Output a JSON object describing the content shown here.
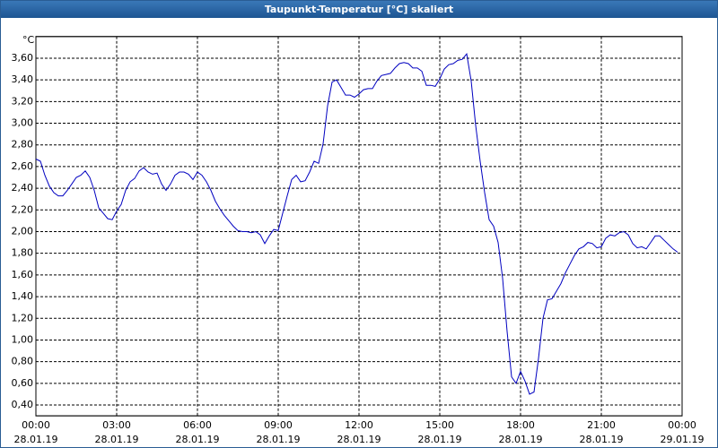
{
  "chart_data": {
    "type": "line",
    "title": "Taupunkt-Temperatur [°C] skaliert",
    "y_unit": "°C",
    "color": "#0000c0",
    "grid": true,
    "xlim": [
      0,
      1440
    ],
    "xticks": [
      {
        "value": 0,
        "label": "00:00"
      },
      {
        "value": 180,
        "label": "03:00"
      },
      {
        "value": 360,
        "label": "06:00"
      },
      {
        "value": 540,
        "label": "09:00"
      },
      {
        "value": 720,
        "label": "12:00"
      },
      {
        "value": 900,
        "label": "15:00"
      },
      {
        "value": 1080,
        "label": "18:00"
      },
      {
        "value": 1260,
        "label": "21:00"
      },
      {
        "value": 1440,
        "label": "00:00"
      }
    ],
    "xtick_dates": [
      "28.01.19",
      "28.01.19",
      "28.01.19",
      "28.01.19",
      "28.01.19",
      "28.01.19",
      "28.01.19",
      "28.01.19",
      "29.01.19"
    ],
    "ylim": [
      0.3,
      3.8
    ],
    "yticks": [
      {
        "value": 0.4,
        "label": "0,40"
      },
      {
        "value": 0.6,
        "label": "0,60"
      },
      {
        "value": 0.8,
        "label": "0,80"
      },
      {
        "value": 1.0,
        "label": "1,00"
      },
      {
        "value": 1.2,
        "label": "1,20"
      },
      {
        "value": 1.4,
        "label": "1,40"
      },
      {
        "value": 1.6,
        "label": "1,60"
      },
      {
        "value": 1.8,
        "label": "1,80"
      },
      {
        "value": 2.0,
        "label": "2,00"
      },
      {
        "value": 2.2,
        "label": "2,20"
      },
      {
        "value": 2.4,
        "label": "2,40"
      },
      {
        "value": 2.6,
        "label": "2,60"
      },
      {
        "value": 2.8,
        "label": "2,80"
      },
      {
        "value": 3.0,
        "label": "3,00"
      },
      {
        "value": 3.2,
        "label": "3,20"
      },
      {
        "value": 3.4,
        "label": "3,40"
      },
      {
        "value": 3.6,
        "label": "3,60"
      }
    ],
    "x": [
      0,
      10,
      20,
      30,
      40,
      50,
      60,
      70,
      80,
      90,
      100,
      110,
      120,
      130,
      140,
      150,
      160,
      170,
      180,
      190,
      200,
      210,
      220,
      230,
      240,
      250,
      260,
      270,
      280,
      290,
      300,
      310,
      320,
      330,
      340,
      350,
      360,
      370,
      380,
      390,
      400,
      410,
      420,
      430,
      440,
      450,
      460,
      470,
      480,
      490,
      500,
      510,
      520,
      530,
      540,
      550,
      560,
      570,
      580,
      590,
      600,
      610,
      620,
      630,
      640,
      650,
      660,
      670,
      680,
      690,
      700,
      710,
      720,
      730,
      740,
      750,
      760,
      770,
      780,
      790,
      800,
      810,
      820,
      830,
      840,
      850,
      860,
      870,
      880,
      890,
      900,
      910,
      920,
      930,
      940,
      950,
      960,
      970,
      980,
      990,
      1000,
      1010,
      1020,
      1030,
      1040,
      1050,
      1060,
      1070,
      1080,
      1090,
      1100,
      1110,
      1120,
      1130,
      1140,
      1150,
      1160,
      1170,
      1180,
      1190,
      1200,
      1210,
      1220,
      1230,
      1240,
      1250,
      1260,
      1270,
      1280,
      1290,
      1300,
      1310,
      1320,
      1330,
      1340,
      1350,
      1360,
      1370,
      1380,
      1390,
      1400,
      1410,
      1420,
      1430
    ],
    "values": [
      2.67,
      2.65,
      2.52,
      2.42,
      2.36,
      2.33,
      2.33,
      2.38,
      2.44,
      2.5,
      2.52,
      2.56,
      2.5,
      2.38,
      2.22,
      2.17,
      2.12,
      2.11,
      2.19,
      2.25,
      2.38,
      2.46,
      2.49,
      2.56,
      2.59,
      2.55,
      2.53,
      2.54,
      2.44,
      2.38,
      2.44,
      2.52,
      2.55,
      2.55,
      2.53,
      2.48,
      2.55,
      2.52,
      2.46,
      2.38,
      2.28,
      2.21,
      2.15,
      2.1,
      2.05,
      2.01,
      2.0,
      2.0,
      1.99,
      2.0,
      1.97,
      1.89,
      1.96,
      2.02,
      2.01,
      2.17,
      2.33,
      2.48,
      2.52,
      2.46,
      2.47,
      2.55,
      2.65,
      2.63,
      2.81,
      3.16,
      3.38,
      3.4,
      3.33,
      3.26,
      3.26,
      3.24,
      3.27,
      3.31,
      3.32,
      3.32,
      3.39,
      3.44,
      3.45,
      3.46,
      3.51,
      3.55,
      3.56,
      3.55,
      3.51,
      3.51,
      3.48,
      3.35,
      3.35,
      3.34,
      3.41,
      3.5,
      3.54,
      3.55,
      3.58,
      3.59,
      3.64,
      3.39,
      2.98,
      2.65,
      2.36,
      2.11,
      2.05,
      1.9,
      1.57,
      1.08,
      0.66,
      0.6,
      0.71,
      0.62,
      0.5,
      0.52,
      0.83,
      1.2,
      1.37,
      1.38,
      1.45,
      1.52,
      1.62,
      1.7,
      1.78,
      1.84,
      1.86,
      1.9,
      1.89,
      1.85,
      1.86,
      1.94,
      1.97,
      1.96,
      1.99,
      2.0,
      1.97,
      1.89,
      1.85,
      1.86,
      1.84,
      1.9,
      1.96,
      1.96,
      1.92,
      1.88,
      1.84,
      1.81
    ]
  }
}
